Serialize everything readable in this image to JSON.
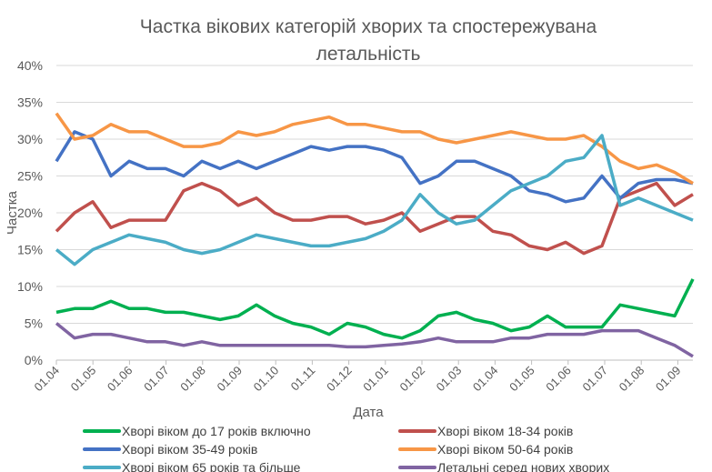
{
  "chart_data": {
    "type": "line",
    "title": "Частка вікових категорій хворих та спостережувана летальність",
    "title_lines": [
      "Частка вікових категорій хворих та спостережувана",
      "летальність"
    ],
    "xlabel": "Дата",
    "ylabel": "Частка",
    "ylim": [
      0,
      40
    ],
    "y_ticks": [
      "0%",
      "5%",
      "10%",
      "15%",
      "20%",
      "25%",
      "30%",
      "35%",
      "40%"
    ],
    "x_tick_labels": [
      "01.04",
      "01.05",
      "01.06",
      "01.07",
      "01.08",
      "01.09",
      "01.10",
      "01.11",
      "01.12",
      "01.01",
      "01.02",
      "01.03",
      "01.04",
      "01.05",
      "01.06",
      "01.07",
      "01.08",
      "01.09"
    ],
    "x": [
      "01.04",
      "15.04",
      "01.05",
      "15.05",
      "01.06",
      "15.06",
      "01.07",
      "15.07",
      "01.08",
      "15.08",
      "01.09",
      "15.09",
      "01.10",
      "15.10",
      "01.11",
      "15.11",
      "01.12",
      "15.12",
      "01.01",
      "15.01",
      "01.02",
      "15.02",
      "01.03",
      "15.03",
      "01.04",
      "15.04",
      "01.05",
      "15.05",
      "01.06",
      "15.06",
      "01.07",
      "15.07",
      "01.08",
      "15.08",
      "01.09",
      "15.09"
    ],
    "grid": true,
    "legend_placement": "bottom",
    "series": [
      {
        "name": "Хворі віком до 17 років включно",
        "color": "#00b050",
        "values": [
          6.5,
          7,
          7,
          8,
          7,
          7,
          6.5,
          6.5,
          6,
          5.5,
          6,
          7.5,
          6,
          5,
          4.5,
          3.5,
          5,
          4.5,
          3.5,
          3,
          4,
          6,
          6.5,
          5.5,
          5,
          4,
          4.5,
          6,
          4.5,
          4.5,
          4.5,
          7.5,
          7,
          6.5,
          6,
          11
        ]
      },
      {
        "name": "Хворі віком 18-34 років",
        "color": "#c0504d",
        "values": [
          17.5,
          20,
          21.5,
          18,
          19,
          19,
          19,
          23,
          24,
          23,
          21,
          22,
          20,
          19,
          19,
          19.5,
          19.5,
          18.5,
          19,
          20,
          17.5,
          18.5,
          19.5,
          19.5,
          17.5,
          17,
          15.5,
          15,
          16,
          14.5,
          15.5,
          22,
          23,
          24,
          21,
          22.5
        ]
      },
      {
        "name": "Хворі віком 35-49 років",
        "color": "#4472c4",
        "values": [
          27,
          31,
          30,
          25,
          27,
          26,
          26,
          25,
          27,
          26,
          27,
          26,
          27,
          28,
          29,
          28.5,
          29,
          29,
          28.5,
          27.5,
          24,
          25,
          27,
          27,
          26,
          25,
          23,
          22.5,
          21.5,
          22,
          25,
          22,
          24,
          24.5,
          24.5,
          24
        ]
      },
      {
        "name": "Хворі віком 50-64 років",
        "color": "#f79646",
        "values": [
          33.5,
          30,
          30.5,
          32,
          31,
          31,
          30,
          29,
          29,
          29.5,
          31,
          30.5,
          31,
          32,
          32.5,
          33,
          32,
          32,
          31.5,
          31,
          31,
          30,
          29.5,
          30,
          30.5,
          31,
          30.5,
          30,
          30,
          30.5,
          29,
          27,
          26,
          26.5,
          25.5,
          24
        ]
      },
      {
        "name": "Хворі віком 65 років та більше",
        "color": "#4bacc6",
        "values": [
          15,
          13,
          15,
          16,
          17,
          16.5,
          16,
          15,
          14.5,
          15,
          16,
          17,
          16.5,
          16,
          15.5,
          15.5,
          16,
          16.5,
          17.5,
          19,
          22.5,
          20,
          18.5,
          19,
          21,
          23,
          24,
          25,
          27,
          27.5,
          30.5,
          21,
          22,
          21,
          20,
          19
        ]
      },
      {
        "name": "Летальні серед нових хворих",
        "color": "#8064a2",
        "values": [
          5,
          3,
          3.5,
          3.5,
          3,
          2.5,
          2.5,
          2,
          2.5,
          2,
          2,
          2,
          2,
          2,
          2,
          2,
          1.8,
          1.8,
          2,
          2.2,
          2.5,
          3,
          2.5,
          2.5,
          2.5,
          3,
          3,
          3.5,
          3.5,
          3.5,
          4,
          4,
          4,
          3,
          2,
          0.5
        ]
      }
    ]
  }
}
